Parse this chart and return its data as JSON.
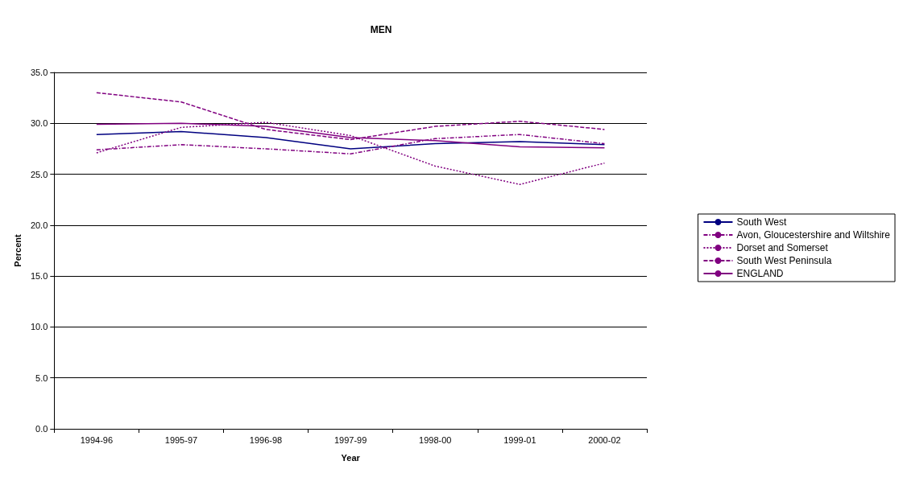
{
  "chart_data": {
    "type": "line",
    "title": "MEN",
    "xlabel": "Year",
    "ylabel": "Percent",
    "categories": [
      "1994-96",
      "1995-97",
      "1996-98",
      "1997-99",
      "1998-00",
      "1999-01",
      "2000-02"
    ],
    "series": [
      {
        "name": "South West",
        "color": "#000080",
        "line_style": "solid",
        "values": [
          28.9,
          29.2,
          28.6,
          27.5,
          28.0,
          28.2,
          27.9
        ]
      },
      {
        "name": "Avon, Gloucestershire and Wiltshire",
        "color": "#800080",
        "line_style": "dashdot",
        "values": [
          27.4,
          27.9,
          27.5,
          27.0,
          28.5,
          28.9,
          28.0
        ]
      },
      {
        "name": "Dorset and Somerset",
        "color": "#800080",
        "line_style": "dotted",
        "values": [
          27.1,
          29.6,
          30.1,
          28.8,
          25.8,
          24.0,
          26.1
        ]
      },
      {
        "name": "South West Peninsula",
        "color": "#800080",
        "line_style": "dashed",
        "values": [
          33.0,
          32.1,
          29.4,
          28.4,
          29.7,
          30.2,
          29.4
        ]
      },
      {
        "name": "ENGLAND",
        "color": "#800080",
        "line_style": "solid",
        "values": [
          29.9,
          30.0,
          29.7,
          28.6,
          28.3,
          27.7,
          27.6
        ]
      }
    ],
    "ylim": [
      0,
      35
    ],
    "yticks": [
      {
        "value": 0,
        "label": "0.0"
      },
      {
        "value": 5,
        "label": "5.0"
      },
      {
        "value": 10,
        "label": "10.0"
      },
      {
        "value": 15,
        "label": "15.0"
      },
      {
        "value": 20,
        "label": "20.0"
      },
      {
        "value": 25,
        "label": "25.0"
      },
      {
        "value": 30,
        "label": "30.0"
      },
      {
        "value": 35,
        "label": "35.0"
      }
    ],
    "grid": "y",
    "legend": "right",
    "marker": "none"
  }
}
